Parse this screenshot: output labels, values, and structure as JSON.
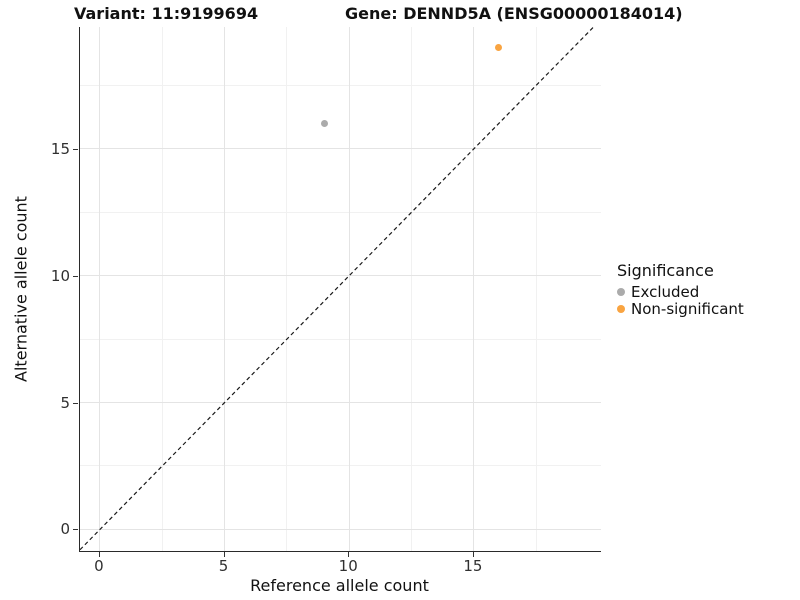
{
  "chart_data": {
    "type": "scatter",
    "titles": {
      "variant": "Variant: 11:9199694",
      "gene": "Gene: DENND5A (ENSG00000184014)"
    },
    "xlabel": "Reference allele count",
    "ylabel": "Alternative allele count",
    "xlim": [
      -0.8,
      20.1
    ],
    "ylim": [
      -0.85,
      19.8
    ],
    "x_ticks": [
      0,
      5,
      10,
      15
    ],
    "x_minor": [
      2.5,
      7.5,
      12.5,
      17.5
    ],
    "y_ticks": [
      0,
      5,
      10,
      15
    ],
    "y_minor": [
      2.5,
      7.5,
      12.5,
      17.5
    ],
    "grid": "on",
    "reference_line": {
      "type": "identity y=x",
      "style": "dashed",
      "color": "#1a1a1a"
    },
    "legend": {
      "title": "Significance",
      "position": "right"
    },
    "series": [
      {
        "name": "Excluded",
        "color": "#ABABAB",
        "points": [
          {
            "x": 9,
            "y": 16
          }
        ]
      },
      {
        "name": "Non-significant",
        "color": "#F9A441",
        "points": [
          {
            "x": 16,
            "y": 19
          }
        ]
      }
    ]
  }
}
